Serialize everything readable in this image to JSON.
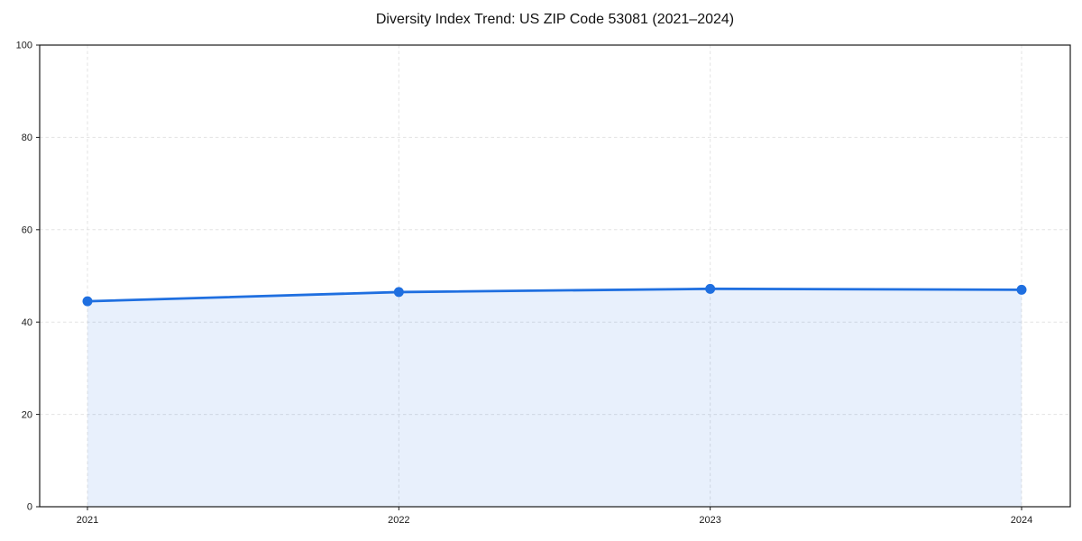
{
  "chart_data": {
    "type": "area",
    "title": "Diversity Index Trend: US ZIP Code 53081 (2021–2024)",
    "categories": [
      "2021",
      "2022",
      "2023",
      "2024"
    ],
    "series": [
      {
        "name": "Diversity Index",
        "values": [
          44.5,
          46.5,
          47.2,
          47.0
        ]
      }
    ],
    "xlabel": "",
    "ylabel": "",
    "ylim": [
      0,
      100
    ],
    "yticks": [
      0,
      20,
      40,
      60,
      80,
      100
    ],
    "grid": "both, dashed",
    "legend": "none",
    "marker": "circle",
    "colors": {
      "line": "#1f6fe0",
      "marker": "#1f6fe0",
      "fill": "#1f6fe0",
      "fill_opacity": 0.1,
      "grid": "#e3e3e3",
      "spine": "#1a1a1a",
      "tick_label": "#1a1a1a",
      "title": "#111111",
      "background": "#ffffff"
    }
  }
}
